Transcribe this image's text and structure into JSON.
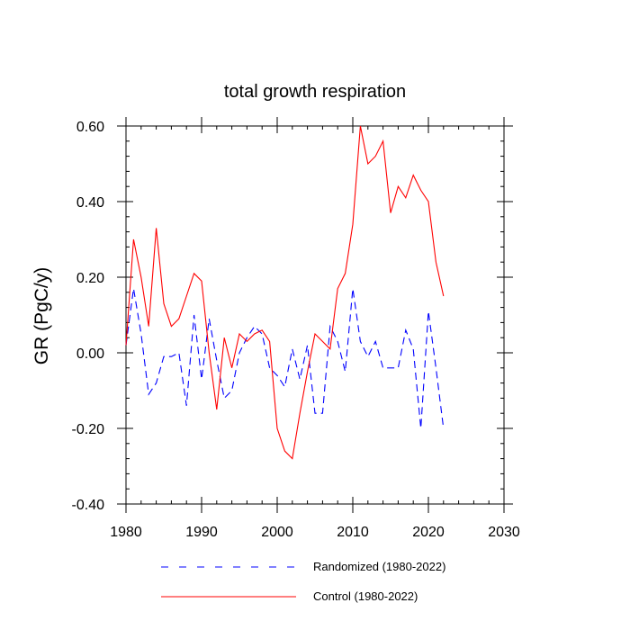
{
  "chart_data": {
    "type": "line",
    "title": "total growth respiration",
    "xlabel": "",
    "ylabel": "GR  (PgC/y)",
    "xlim": [
      1980,
      2030
    ],
    "ylim": [
      -0.4,
      0.6
    ],
    "xticks": [
      1980,
      1990,
      2000,
      2010,
      2020,
      2030
    ],
    "xtick_labels": [
      "1980",
      "1990",
      "2000",
      "2010",
      "2020",
      "2030"
    ],
    "yticks": [
      -0.4,
      -0.2,
      0.0,
      0.2,
      0.4,
      0.6
    ],
    "ytick_labels": [
      "-0.40",
      "-0.20",
      "0.00",
      "0.20",
      "0.40",
      "0.60"
    ],
    "grid": false,
    "legend_position": "bottom",
    "x": [
      1980,
      1981,
      1982,
      1983,
      1984,
      1985,
      1986,
      1987,
      1988,
      1989,
      1990,
      1991,
      1992,
      1993,
      1994,
      1995,
      1996,
      1997,
      1998,
      1999,
      2000,
      2001,
      2002,
      2003,
      2004,
      2005,
      2006,
      2007,
      2008,
      2009,
      2010,
      2011,
      2012,
      2013,
      2014,
      2015,
      2016,
      2017,
      2018,
      2019,
      2020,
      2021,
      2022
    ],
    "series": [
      {
        "name": "Randomized (1980-2022)",
        "color": "#0000ff",
        "style": "dashed",
        "values": [
          0.02,
          0.17,
          0.05,
          -0.11,
          -0.08,
          -0.01,
          -0.01,
          0.0,
          -0.14,
          0.1,
          -0.07,
          0.09,
          -0.02,
          -0.12,
          -0.1,
          0.0,
          0.04,
          0.07,
          0.05,
          -0.04,
          -0.06,
          -0.09,
          0.01,
          -0.07,
          0.02,
          -0.16,
          -0.16,
          0.07,
          0.03,
          -0.05,
          0.17,
          0.03,
          -0.01,
          0.03,
          -0.04,
          -0.04,
          -0.04,
          0.06,
          0.01,
          -0.2,
          0.11,
          -0.04,
          -0.2
        ]
      },
      {
        "name": "Control (1980-2022)",
        "color": "#ff0000",
        "style": "solid",
        "values": [
          0.02,
          0.3,
          0.2,
          0.07,
          0.33,
          0.13,
          0.07,
          0.09,
          0.15,
          0.21,
          0.19,
          0.0,
          -0.15,
          0.04,
          -0.04,
          0.05,
          0.03,
          0.05,
          0.06,
          0.03,
          -0.2,
          -0.26,
          -0.28,
          -0.16,
          -0.05,
          0.05,
          0.03,
          0.01,
          0.17,
          0.21,
          0.34,
          0.6,
          0.5,
          0.52,
          0.56,
          0.37,
          0.44,
          0.41,
          0.47,
          0.43,
          0.4,
          0.24,
          0.15
        ]
      }
    ]
  }
}
